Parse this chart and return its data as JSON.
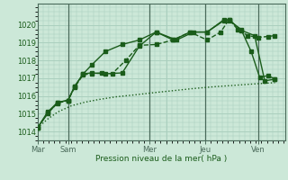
{
  "bg_color": "#cce8d8",
  "grid_color": "#aacfbe",
  "line_color": "#1a5c1a",
  "xlabel": "Pression niveau de la mer( hPa )",
  "ylim": [
    1013.5,
    1021.2
  ],
  "yticks": [
    1014,
    1015,
    1016,
    1017,
    1018,
    1019,
    1020
  ],
  "xlim": [
    0,
    7.3
  ],
  "series": [
    {
      "x": [
        0,
        0.3,
        0.6,
        1.0,
        1.4,
        1.8,
        2.3,
        2.8,
        3.4,
        4.0,
        4.6,
        5.2,
        5.8,
        6.4,
        7.0
      ],
      "y": [
        1014.2,
        1014.7,
        1015.1,
        1015.45,
        1015.65,
        1015.8,
        1015.95,
        1016.05,
        1016.18,
        1016.3,
        1016.42,
        1016.52,
        1016.6,
        1016.68,
        1016.75
      ],
      "linestyle": "dotted",
      "linewidth": 1.0,
      "markers": false
    },
    {
      "x": [
        0,
        0.3,
        0.6,
        0.9,
        1.1,
        1.35,
        1.6,
        1.9,
        2.2,
        2.6,
        3.0,
        3.5,
        4.0,
        4.5,
        5.0,
        5.4,
        5.65,
        5.9,
        6.2,
        6.5,
        6.8,
        7.0
      ],
      "y": [
        1014.2,
        1015.05,
        1015.6,
        1015.75,
        1016.5,
        1017.2,
        1017.25,
        1017.3,
        1017.25,
        1018.0,
        1018.85,
        1018.9,
        1019.15,
        1019.6,
        1019.15,
        1019.6,
        1020.3,
        1019.75,
        1019.4,
        1019.3,
        1019.35,
        1019.4
      ],
      "linestyle": "dashed",
      "linewidth": 1.0,
      "markers": true
    },
    {
      "x": [
        0,
        0.3,
        0.6,
        0.9,
        1.1,
        1.35,
        1.6,
        2.0,
        2.5,
        3.0,
        3.5,
        4.0,
        4.5,
        5.0,
        5.5,
        5.65,
        6.0,
        6.4,
        6.7,
        7.0
      ],
      "y": [
        1014.2,
        1015.0,
        1015.65,
        1015.75,
        1016.55,
        1017.25,
        1017.75,
        1018.5,
        1018.9,
        1019.15,
        1019.6,
        1019.15,
        1019.6,
        1019.6,
        1020.25,
        1020.3,
        1019.7,
        1019.4,
        1016.85,
        1016.95
      ],
      "linestyle": "solid",
      "linewidth": 1.0,
      "markers": true
    },
    {
      "x": [
        0,
        0.3,
        0.6,
        0.9,
        1.1,
        1.35,
        1.6,
        2.0,
        2.5,
        3.0,
        3.5,
        4.1,
        4.6,
        5.0,
        5.5,
        5.65,
        6.0,
        6.3,
        6.55,
        6.8,
        7.0
      ],
      "y": [
        1014.2,
        1015.1,
        1015.65,
        1015.75,
        1016.55,
        1017.25,
        1017.3,
        1017.25,
        1017.3,
        1018.8,
        1019.6,
        1019.15,
        1019.6,
        1019.6,
        1020.3,
        1020.25,
        1019.75,
        1018.5,
        1017.05,
        1017.15,
        1016.95
      ],
      "linestyle": "solid",
      "linewidth": 1.0,
      "markers": true
    }
  ],
  "vlines": [
    0.9,
    3.3,
    4.95,
    6.5
  ],
  "xtick_positions": [
    0.0,
    0.9,
    3.3,
    3.8,
    4.95,
    6.5
  ],
  "xtick_labels": [
    "Mar",
    "Sam",
    "Mer",
    "",
    "Jeu",
    "Ven"
  ]
}
